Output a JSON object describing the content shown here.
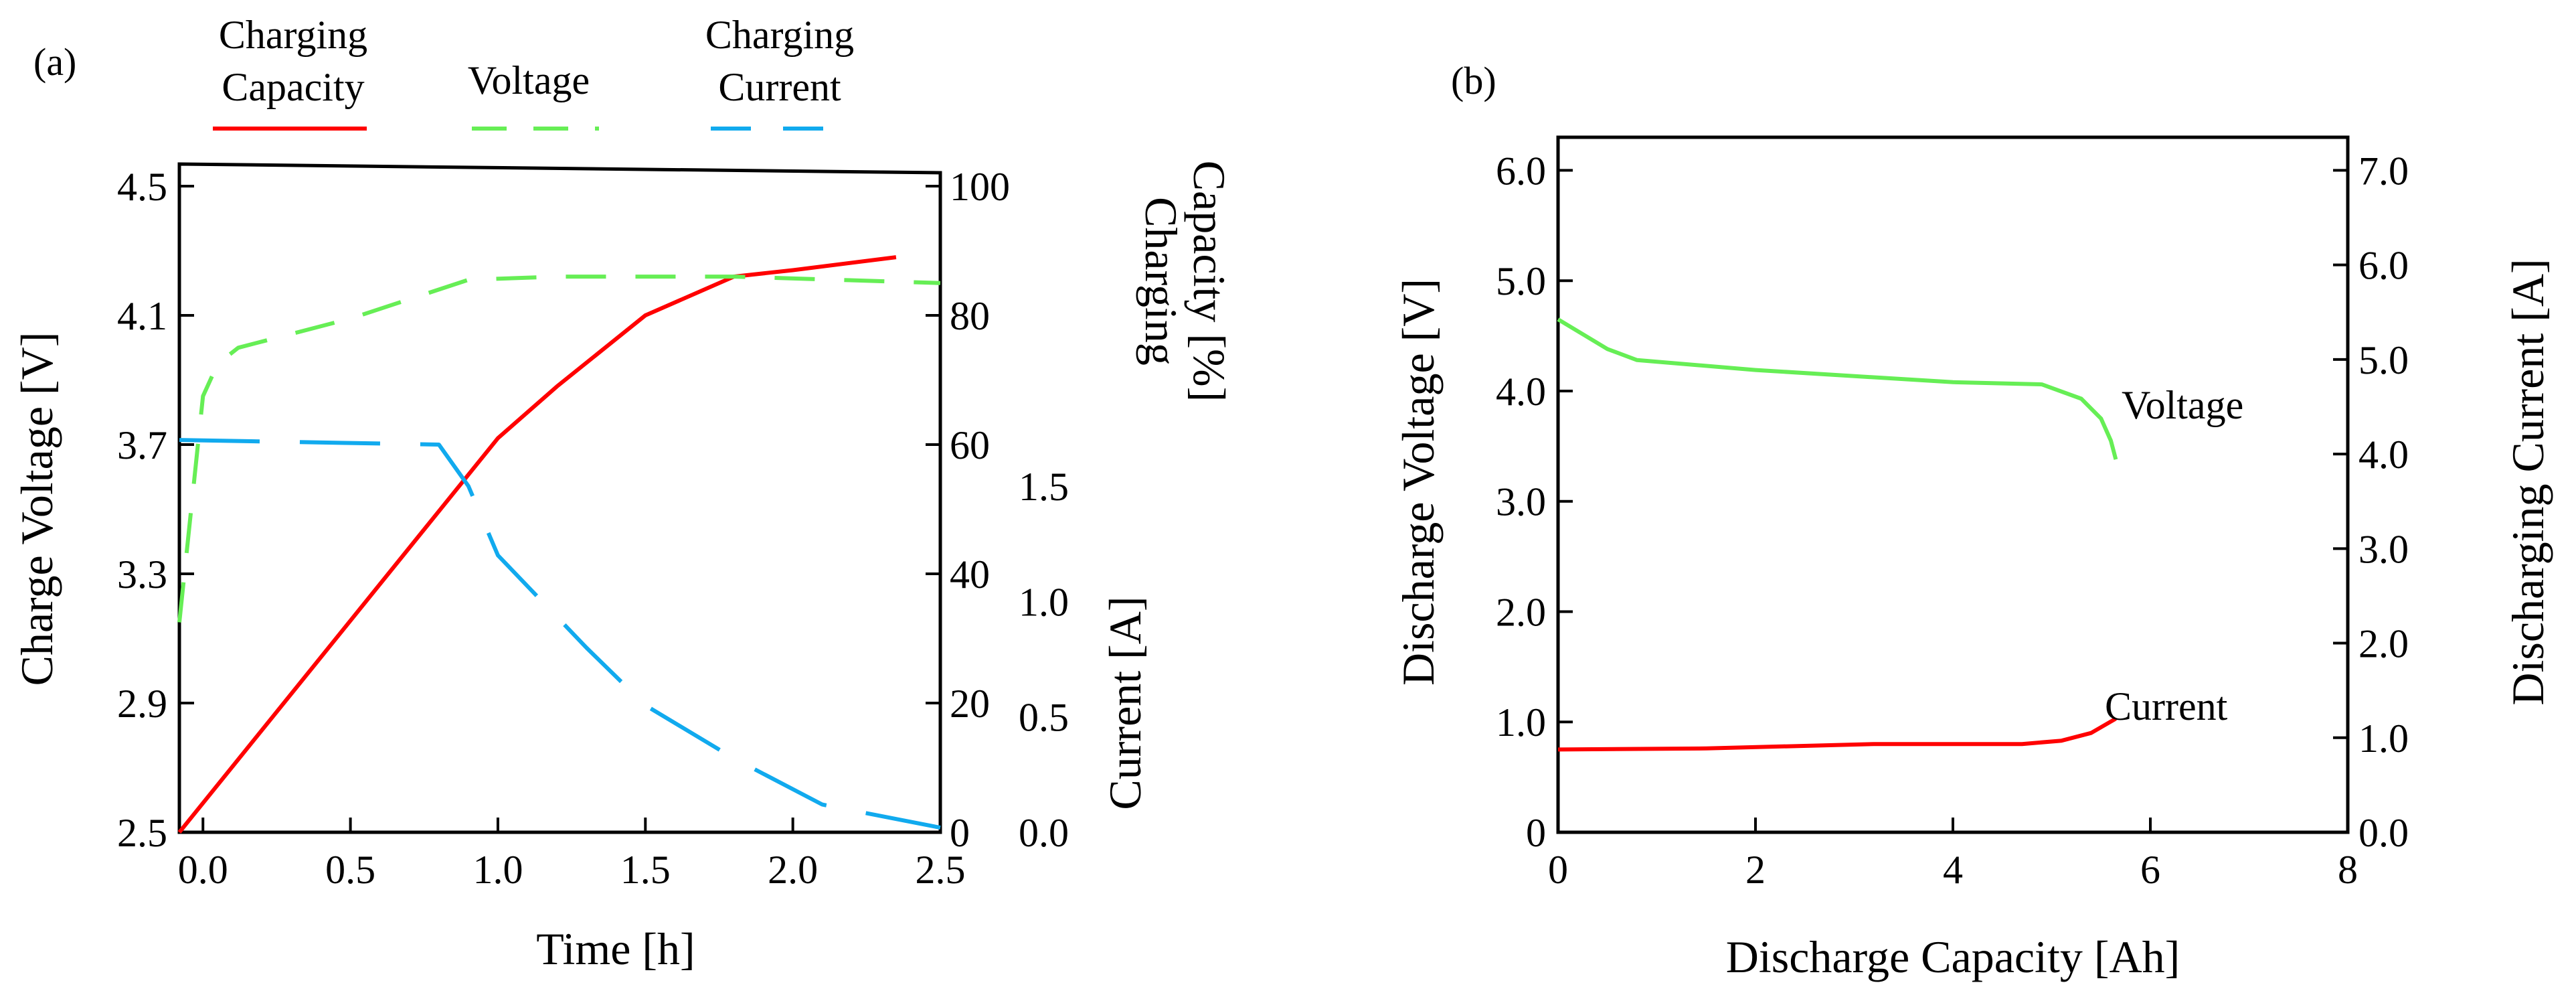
{
  "figure": {
    "panel_a_label": "(a)",
    "panel_b_label": "(b)"
  },
  "chart_data": [
    {
      "id": "panel-a",
      "type": "line",
      "title": "",
      "xlabel": "Time [h]",
      "ylabel_left": "Charge Voltage [V]",
      "ylabel_right_upper": [
        "Charging",
        "Capacity [%]"
      ],
      "ylabel_right_lower": "Current [A]",
      "xlim": [
        -0.08,
        2.5
      ],
      "xticks": [
        "0.0",
        "0.5",
        "1.0",
        "1.5",
        "2.0",
        "2.5"
      ],
      "xtick_values": [
        0.0,
        0.5,
        1.0,
        1.5,
        2.0,
        2.5
      ],
      "voltage_ylim": [
        2.5,
        4.5
      ],
      "voltage_ticks": [
        "2.5",
        "2.9",
        "3.3",
        "3.7",
        "4.1",
        "4.5"
      ],
      "voltage_tick_values": [
        2.5,
        2.9,
        3.3,
        3.7,
        4.1,
        4.5
      ],
      "capacity_ylim": [
        0,
        100
      ],
      "capacity_ticks": [
        "0",
        "20",
        "40",
        "60",
        "80",
        "100"
      ],
      "capacity_tick_values": [
        0,
        20,
        40,
        60,
        80,
        100
      ],
      "current_ylim": [
        0,
        2.8
      ],
      "current_ticks": [
        "0.0",
        "0.5",
        "1.0",
        "1.5"
      ],
      "current_tick_values": [
        0.0,
        0.5,
        1.0,
        1.5
      ],
      "legend": [
        {
          "label_lines": [
            "Charging",
            "Capacity"
          ],
          "style": "solid",
          "color": "#ff0000"
        },
        {
          "label_lines": [
            "Voltage"
          ],
          "style": "dashed",
          "color": "#66ee55"
        },
        {
          "label_lines": [
            "Charging",
            "Current"
          ],
          "style": "dashed",
          "color": "#11aaee"
        }
      ],
      "series": [
        {
          "name": "Charging Capacity",
          "axis": "capacity",
          "color": "#ff0000",
          "style": "solid",
          "x": [
            -0.08,
            1.0,
            1.2,
            1.5,
            1.8,
            2.0,
            2.35
          ],
          "y": [
            0,
            61,
            69,
            80,
            86,
            87,
            89
          ]
        },
        {
          "name": "Voltage",
          "axis": "voltage",
          "color": "#66ee55",
          "style": "dashed",
          "x": [
            -0.08,
            0.0,
            0.05,
            0.12,
            0.5,
            0.9,
            1.2,
            1.8,
            2.5
          ],
          "y": [
            3.15,
            3.85,
            3.95,
            4.0,
            4.09,
            4.21,
            4.22,
            4.22,
            4.2
          ]
        },
        {
          "name": "Charging Current",
          "axis": "current",
          "color": "#11aaee",
          "style": "dashed",
          "x": [
            -0.08,
            0.8,
            0.9,
            1.0,
            1.3,
            1.5,
            1.8,
            2.1,
            2.5
          ],
          "y": [
            1.7,
            1.68,
            1.5,
            1.2,
            0.8,
            0.55,
            0.32,
            0.12,
            0.02
          ]
        }
      ]
    },
    {
      "id": "panel-b",
      "type": "line",
      "title": "",
      "xlabel": "Discharge Capacity [Ah]",
      "ylabel_left": "Discharge Voltage [V]",
      "ylabel_right": "Discharging Current [A]",
      "xlim": [
        0,
        8
      ],
      "xticks": [
        "0",
        "2",
        "4",
        "6",
        "8"
      ],
      "xtick_values": [
        0,
        2,
        4,
        6,
        8
      ],
      "voltage_ylim": [
        0,
        6.3
      ],
      "voltage_ticks": [
        "0",
        "1.0",
        "2.0",
        "3.0",
        "4.0",
        "5.0",
        "6.0"
      ],
      "voltage_tick_values": [
        0,
        1,
        2,
        3,
        4,
        5,
        6
      ],
      "current_ylim": [
        0,
        7.35
      ],
      "current_ticks": [
        "0.0",
        "1.0",
        "2.0",
        "3.0",
        "4.0",
        "5.0",
        "6.0",
        "7.0"
      ],
      "current_tick_values": [
        0,
        1,
        2,
        3,
        4,
        5,
        6,
        7
      ],
      "series": [
        {
          "name": "Voltage",
          "label": "Voltage",
          "axis": "voltage",
          "color": "#66ee55",
          "style": "solid",
          "x": [
            0,
            0.5,
            0.8,
            2,
            4,
            4.9,
            5.3,
            5.5,
            5.6,
            5.65
          ],
          "y": [
            4.65,
            4.38,
            4.28,
            4.19,
            4.08,
            4.06,
            3.93,
            3.75,
            3.55,
            3.38
          ]
        },
        {
          "name": "Current",
          "label": "Current",
          "axis": "voltage",
          "color": "#ff0000",
          "style": "solid",
          "x": [
            0,
            1.5,
            3.2,
            4.7,
            5.1,
            5.4,
            5.65
          ],
          "y": [
            0.75,
            0.76,
            0.8,
            0.8,
            0.83,
            0.9,
            1.03
          ]
        }
      ]
    }
  ]
}
